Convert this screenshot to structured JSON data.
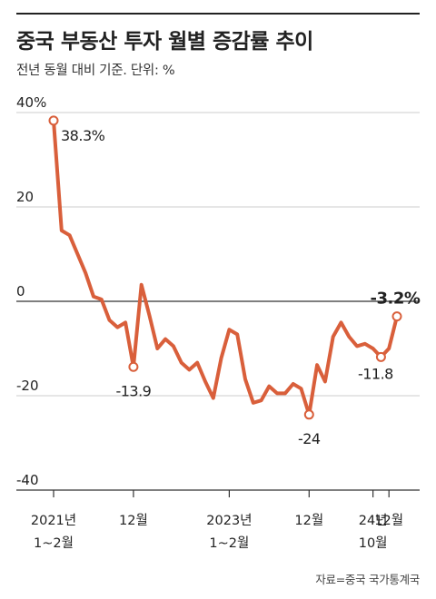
{
  "title": "중국 부동산 투자 월별 증감률 추이",
  "subtitle": "전년 동월 대비 기준. 단위: %",
  "source": "자료=중국 국가통계국",
  "colors": {
    "line": "#d95f3b",
    "axis": "#333333",
    "grid": "#cccccc",
    "text": "#222222"
  },
  "chart_data": {
    "type": "line",
    "title": "중국 부동산 투자 월별 증감률 추이",
    "xlabel": "",
    "ylabel": "",
    "ylim": [
      -40,
      40
    ],
    "y_ticks": [
      {
        "value": 40,
        "label": "40%"
      },
      {
        "value": 20,
        "label": "20"
      },
      {
        "value": 0,
        "label": "0"
      },
      {
        "value": -20,
        "label": "-20"
      },
      {
        "value": -40,
        "label": "-40"
      }
    ],
    "x_ticks": [
      {
        "index": 0,
        "line1": "2021년",
        "line2": "1~2월"
      },
      {
        "index": 10,
        "line1": "12월",
        "line2": ""
      },
      {
        "index": 22,
        "line1": "2023년",
        "line2": "1~2월"
      },
      {
        "index": 32,
        "line1": "12월",
        "line2": ""
      },
      {
        "index": 40,
        "line1": "24년",
        "line2": "10월"
      },
      {
        "index": 42,
        "line1": "12월",
        "line2": ""
      }
    ],
    "grid": true,
    "series": [
      {
        "values": [
          38.3,
          15,
          14,
          10,
          6,
          1,
          0.4,
          -4,
          -5.5,
          -4.5,
          -13.9,
          3.5,
          -3,
          -10,
          -8,
          -9.5,
          -13,
          -14.5,
          -13,
          -17,
          -20.5,
          -12,
          -6,
          -7,
          -16.5,
          -21.5,
          -21,
          -18,
          -19.5,
          -19.5,
          -17.5,
          -18.5,
          -24,
          -13.5,
          -17,
          -7.5,
          -4.5,
          -7.5,
          -9.5,
          -9,
          -10,
          -11.8,
          -10,
          -3.2
        ]
      }
    ],
    "annotations": [
      {
        "index": 0,
        "label": "38.3%",
        "bold": false
      },
      {
        "index": 10,
        "label": "-13.9",
        "bold": false
      },
      {
        "index": 32,
        "label": "-24",
        "bold": false
      },
      {
        "index": 41,
        "label": "-11.8",
        "bold": false
      },
      {
        "index": 43,
        "label": "-3.2%",
        "bold": true
      }
    ]
  }
}
